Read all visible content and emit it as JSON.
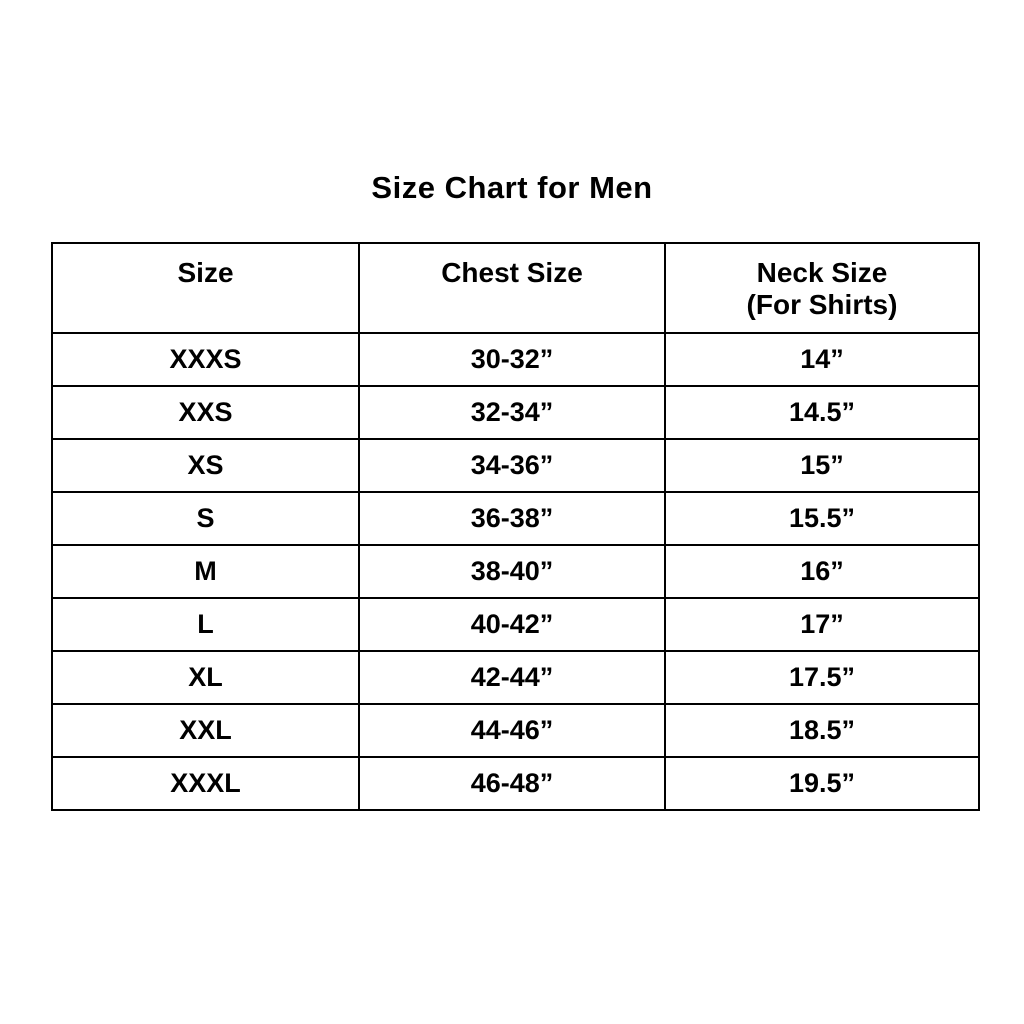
{
  "page": {
    "title": "Size Chart for Men"
  },
  "chart_data": {
    "type": "table",
    "title": "Size Chart for Men",
    "columns": [
      "Size",
      "Chest Size",
      "Neck Size (For Shirts)"
    ],
    "rows": [
      [
        "XXXS",
        "30-32”",
        "14”"
      ],
      [
        "XXS",
        "32-34”",
        "14.5”"
      ],
      [
        "XS",
        "34-36”",
        "15”"
      ],
      [
        "S",
        "36-38”",
        "15.5”"
      ],
      [
        "M",
        "38-40”",
        "16”"
      ],
      [
        "L",
        "40-42”",
        "17”"
      ],
      [
        "XL",
        "42-44”",
        "17.5”"
      ],
      [
        "XXL",
        "44-46”",
        "18.5”"
      ],
      [
        "XXXL",
        "46-48”",
        "19.5”"
      ]
    ],
    "layout": {
      "grid": true,
      "border_color": "#000000",
      "background_color": "#ffffff",
      "text_color": "#000000"
    }
  },
  "table": {
    "headers": [
      {
        "line1": "Size",
        "line2": ""
      },
      {
        "line1": "Chest Size",
        "line2": ""
      },
      {
        "line1": "Neck Size",
        "line2": "(For Shirts)"
      }
    ]
  }
}
